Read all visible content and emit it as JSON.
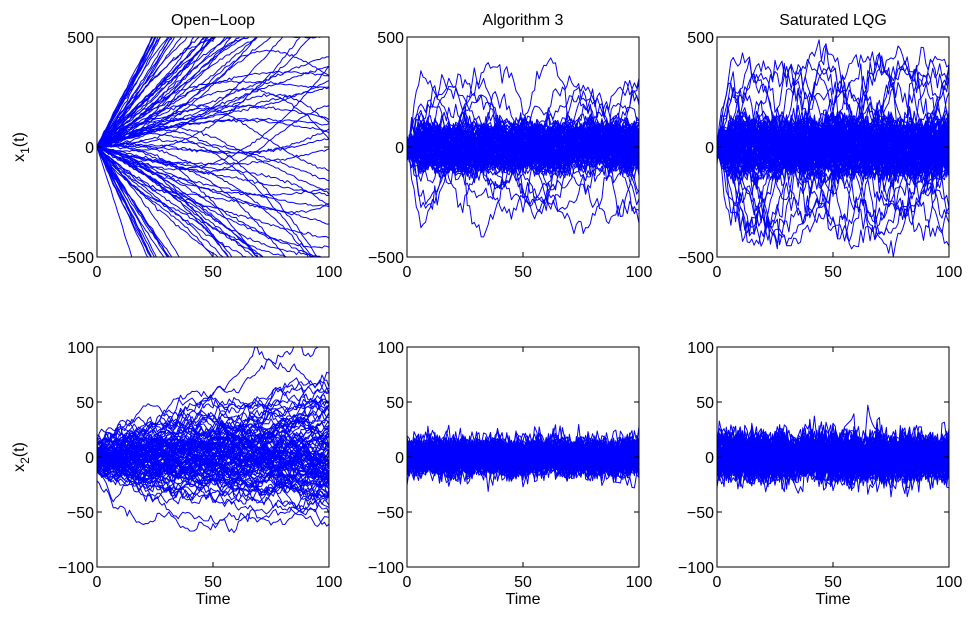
{
  "chart_data": [
    {
      "id": "p11",
      "type": "line",
      "title": "Open−Loop",
      "xlabel": "",
      "ylabel": "x",
      "ylabel_sub": "1",
      "ylabel_tail": "(t)",
      "xlim": [
        0,
        100
      ],
      "ylim": [
        -500,
        500
      ],
      "xticks": [
        0,
        50,
        100
      ],
      "yticks": [
        -500,
        0,
        500
      ],
      "ytick_labels": [
        "−500",
        "0",
        "500"
      ],
      "grid": false,
      "line_color": "#0000ff",
      "series_count": 100,
      "trajectory_kind": "diverging",
      "spread_scale": 12,
      "noise_level": 3
    },
    {
      "id": "p12",
      "type": "line",
      "title": "Algorithm 3",
      "xlabel": "",
      "ylabel": "",
      "xlim": [
        0,
        100
      ],
      "ylim": [
        -500,
        500
      ],
      "xticks": [
        0,
        50,
        100
      ],
      "yticks": [
        -500,
        0,
        500
      ],
      "ytick_labels": [
        "−500",
        "0",
        "500"
      ],
      "grid": false,
      "line_color": "#0000ff",
      "series_count": 100,
      "trajectory_kind": "bounded",
      "spread_scale": 70,
      "noise_level": 22
    },
    {
      "id": "p13",
      "type": "line",
      "title": "Saturated LQG",
      "xlabel": "",
      "ylabel": "",
      "xlim": [
        0,
        100
      ],
      "ylim": [
        -500,
        500
      ],
      "xticks": [
        0,
        50,
        100
      ],
      "yticks": [
        -500,
        0,
        500
      ],
      "ytick_labels": [
        "−500",
        "0",
        "500"
      ],
      "grid": false,
      "line_color": "#0000ff",
      "series_count": 100,
      "trajectory_kind": "bounded",
      "spread_scale": 85,
      "noise_level": 28
    },
    {
      "id": "p21",
      "type": "line",
      "title": "",
      "xlabel": "Time",
      "ylabel": "x",
      "ylabel_sub": "2",
      "ylabel_tail": "(t)",
      "xlim": [
        0,
        100
      ],
      "ylim": [
        -100,
        100
      ],
      "xticks": [
        0,
        50,
        100
      ],
      "yticks": [
        -100,
        -50,
        0,
        50,
        100
      ],
      "ytick_labels": [
        "−100",
        "−50",
        "0",
        "50",
        "100"
      ],
      "grid": false,
      "line_color": "#0000ff",
      "series_count": 100,
      "trajectory_kind": "random-walk",
      "spread_scale": 3.2,
      "noise_level": 0
    },
    {
      "id": "p22",
      "type": "line",
      "title": "",
      "xlabel": "Time",
      "ylabel": "",
      "xlim": [
        0,
        100
      ],
      "ylim": [
        -100,
        100
      ],
      "xticks": [
        0,
        50,
        100
      ],
      "yticks": [
        -100,
        -50,
        0,
        50,
        100
      ],
      "ytick_labels": [
        "−100",
        "−50",
        "0",
        "50",
        "100"
      ],
      "grid": false,
      "line_color": "#0000ff",
      "series_count": 100,
      "trajectory_kind": "noise",
      "spread_scale": 8,
      "noise_level": 0
    },
    {
      "id": "p23",
      "type": "line",
      "title": "",
      "xlabel": "Time",
      "ylabel": "",
      "xlim": [
        0,
        100
      ],
      "ylim": [
        -100,
        100
      ],
      "xticks": [
        0,
        50,
        100
      ],
      "yticks": [
        -100,
        -50,
        0,
        50,
        100
      ],
      "ytick_labels": [
        "−100",
        "−50",
        "0",
        "50",
        "100"
      ],
      "grid": false,
      "line_color": "#0000ff",
      "series_count": 100,
      "trajectory_kind": "noise",
      "spread_scale": 10,
      "noise_level": 0
    }
  ]
}
